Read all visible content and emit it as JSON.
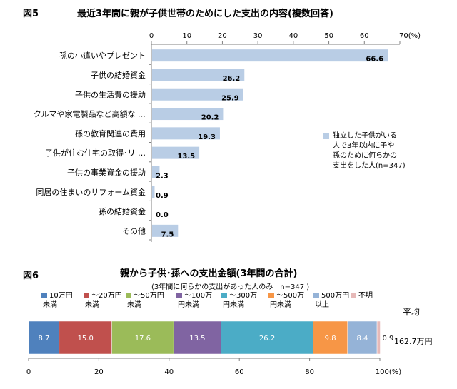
{
  "colors": {
    "bar": "#b9cde5",
    "axis": "#808080",
    "grid": "#d9d9d9"
  },
  "chart_data": [
    {
      "type": "bar",
      "orientation": "horizontal",
      "figure_label": "図5",
      "title": "最近3年間に親が子供世帯のためにした支出の内容(複数回答)",
      "categories": [
        "孫の小遣いやプレゼント",
        "子供の結婚資金",
        "子供の生活費の援助",
        "クルマや家電製品など高額な …",
        "孫の教育関連の費用",
        "子供が住む住宅の取得･リ …",
        "子供の事業資金の援助",
        "同居の住まいのリフォーム資金",
        "孫の結婚資金",
        "その他"
      ],
      "values": [
        66.6,
        26.2,
        25.9,
        20.2,
        19.3,
        13.5,
        2.3,
        0.9,
        0.0,
        7.5
      ],
      "value_labels": [
        "66.6",
        "26.2",
        "25.9",
        "20.2",
        "19.3",
        "13.5",
        "2.3",
        "0.9",
        "0.0",
        "7.5"
      ],
      "xlim": [
        0,
        70
      ],
      "xticks": [
        "0",
        "10",
        "20",
        "30",
        "40",
        "50",
        "60",
        "70(%)"
      ],
      "legend": "独立した子供がいる人で3年以内に子や孫のために何らかの支出をした人(n=347)",
      "legend_lines": [
        "独立した子供がいる",
        "人で3年以内に子や",
        "孫のために何らかの",
        "支出をした人(n=347)"
      ],
      "legend_position": "right"
    },
    {
      "type": "bar",
      "orientation": "horizontal",
      "stacked": true,
      "figure_label": "図6",
      "title": "親から子供･孫への支出金額(3年間の合計)",
      "subtitle": "(3年間に何らかの支出があった人のみ　n=347 )",
      "series": [
        {
          "name": "10万円未満",
          "name_lines": [
            "10万円",
            "未満"
          ],
          "value": 8.7,
          "label": "8.7",
          "color": "#4f81bd"
        },
        {
          "name": "～20万円未満",
          "name_lines": [
            "～20万円",
            "未満"
          ],
          "value": 15.0,
          "label": "15.0",
          "color": "#c0504d"
        },
        {
          "name": "～50万円未満",
          "name_lines": [
            "～50万円",
            "未満"
          ],
          "value": 17.6,
          "label": "17.6",
          "color": "#9bbb59"
        },
        {
          "name": "～100万円未満",
          "name_lines": [
            "～100万",
            "円未満"
          ],
          "value": 13.5,
          "label": "13.5",
          "color": "#8064a2"
        },
        {
          "name": "～300万円未満",
          "name_lines": [
            "～300万",
            "円未満"
          ],
          "value": 26.2,
          "label": "26.2",
          "color": "#4bacc6"
        },
        {
          "name": "～500万円未満",
          "name_lines": [
            "～500万",
            "円未満"
          ],
          "value": 9.8,
          "label": "9.8",
          "color": "#f79646"
        },
        {
          "name": "500万円以上",
          "name_lines": [
            "500万円",
            "以上"
          ],
          "value": 8.4,
          "label": "8.4",
          "color": "#95b3d7"
        },
        {
          "name": "不明",
          "name_lines": [
            "不明"
          ],
          "value": 0.9,
          "label": "0.9",
          "color": "#e6b9b8"
        }
      ],
      "xlim": [
        0,
        100
      ],
      "xticks": [
        "0",
        "20",
        "40",
        "60",
        "80",
        "100(%)"
      ],
      "average_label": "平均",
      "average_value": "162.7万円",
      "legend_position": "top"
    }
  ]
}
